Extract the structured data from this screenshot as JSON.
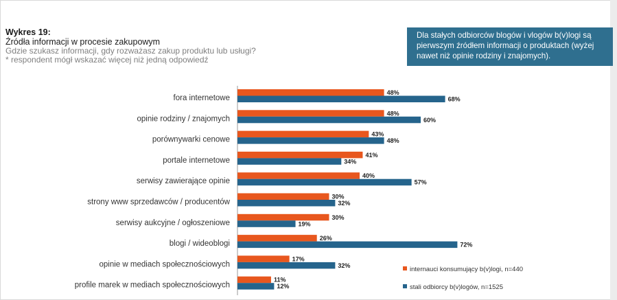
{
  "header": {
    "figure_number": "Wykres 19:",
    "title": "Źródła informacji w procesie zakupowym",
    "question": "Gdzie szukasz informacji, gdy rozważasz zakup produktu lub usługi?",
    "note": "* respondent mógł wskazać więcej niż jedną odpowiedź"
  },
  "callout": {
    "text": "Dla stałych odbiorców blogów i vlogów b(v)logi są pierwszym źródłem informacji o produktach (wyżej nawet niż opinie rodziny i znajomych)."
  },
  "colors": {
    "series1": "#e8571e",
    "series2": "#25648c",
    "callout_bg": "#2f6f8f"
  },
  "chart_data": {
    "type": "bar",
    "orientation": "horizontal",
    "title": "Źródła informacji w procesie zakupowym",
    "categories": [
      "fora internetowe",
      "opinie rodziny / znajomych",
      "porównywarki cenowe",
      "portale internetowe",
      "serwisy zawierające opinie",
      "strony www sprzedawców / producentów",
      "serwisy aukcyjne / ogłoszeniowe",
      "blogi / wideoblogi",
      "opinie w mediach społecznościowych",
      "profile marek w mediach społecznościowych"
    ],
    "series": [
      {
        "name": "internauci konsumujący b(v)logi, n=440",
        "values": [
          48,
          48,
          43,
          41,
          40,
          30,
          30,
          26,
          17,
          11
        ]
      },
      {
        "name": "stali odbiorcy b(v)logów, n=1525",
        "values": [
          68,
          60,
          48,
          34,
          57,
          32,
          19,
          72,
          32,
          12
        ]
      }
    ],
    "value_suffix": "%",
    "xlim": [
      0,
      100
    ],
    "legend_position": "bottom-right"
  }
}
